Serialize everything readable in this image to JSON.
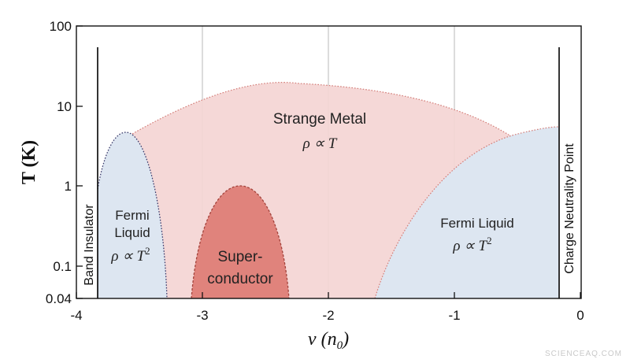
{
  "chart_data": {
    "type": "phase-diagram",
    "title": "",
    "xlabel": "ν (n",
    "xlabel_sub": "0",
    "xlabel_close": ")",
    "ylabel": "T (K)",
    "xlim": [
      -4,
      0
    ],
    "ylim": [
      0.04,
      100
    ],
    "yscale": "log",
    "x_ticks": [
      "-4",
      "-3",
      "-2",
      "-1",
      "0"
    ],
    "y_ticks": [
      "100",
      "10",
      "1",
      "0.1",
      "0.04"
    ],
    "grid": "vertical at ν = -3, -2, -1",
    "boundaries": [
      {
        "label": "Band Insulator",
        "x": -3.8,
        "color": "#000000"
      },
      {
        "label": "Charge Neutrality Point",
        "x": -0.18,
        "color": "#000000"
      }
    ],
    "regions": [
      {
        "name": "Strange Metal",
        "formula": "ρ ∝ T",
        "color": "#f4d5d4",
        "edge": "#d37d78",
        "apex_x": -2.2,
        "apex_T": 18
      },
      {
        "name": "Fermi Liquid (left)",
        "lines": [
          "Fermi",
          "Liquid"
        ],
        "formula": "ρ ∝ T",
        "sup": "2",
        "color": "#dde6f1",
        "edge": "#3a3a6a",
        "x_range": [
          -3.82,
          -3.27
        ],
        "apex_x": -3.6,
        "apex_T": 4.5
      },
      {
        "name": "Superconductor",
        "lines": [
          "Super-",
          "conductor"
        ],
        "color": "#e0837c",
        "edge": "#a3423b",
        "x_range": [
          -3.08,
          -2.32
        ],
        "apex_x": -2.7,
        "apex_T": 1.0
      },
      {
        "name": "Fermi Liquid (right)",
        "lines": [
          "Fermi Liquid"
        ],
        "formula": "ρ ∝ T",
        "sup": "2",
        "color": "#dde6f1",
        "edge": "#d37d78",
        "x_range": [
          -1.62,
          -0.18
        ],
        "apex_x": -0.18,
        "apex_T": 5.5
      }
    ]
  },
  "watermark": "SCIENCEAQ.COM"
}
